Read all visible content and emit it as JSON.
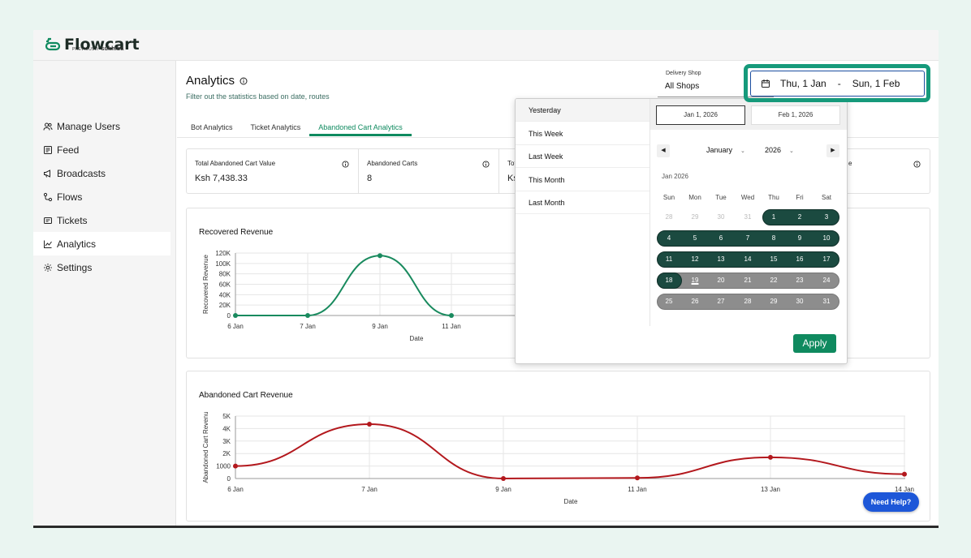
{
  "app": {
    "logo": "Flowcart",
    "logo_sub_prefix": "PREVIOUSLY",
    "logo_sub_brand": "sukhiba",
    "brand_color": "#0f8a5f"
  },
  "sidebar": {
    "items": [
      {
        "label": "Manage Users",
        "icon": "users-icon"
      },
      {
        "label": "Feed",
        "icon": "feed-icon"
      },
      {
        "label": "Broadcasts",
        "icon": "megaphone-icon"
      },
      {
        "label": "Flows",
        "icon": "flows-icon"
      },
      {
        "label": "Tickets",
        "icon": "ticket-icon"
      },
      {
        "label": "Analytics",
        "icon": "chart-icon",
        "active": true
      },
      {
        "label": "Settings",
        "icon": "gear-icon"
      }
    ]
  },
  "page": {
    "title": "Analytics",
    "subtitle": "Filter out the statistics based on date, routes"
  },
  "tabs": [
    "Bot Analytics",
    "Ticket Analytics",
    "Abandoned Cart Analytics"
  ],
  "shop_filter": {
    "label": "Delivery Shop",
    "value": "All Shops"
  },
  "date_range": {
    "start": "Thu, 1 Jan",
    "separator": "-",
    "end": "Sun, 1 Feb"
  },
  "cards": [
    {
      "label": "Total Abandoned Cart Value",
      "value": "Ksh 7,438.33"
    },
    {
      "label": "Abandoned Carts",
      "value": "8"
    },
    {
      "label": "Tot",
      "value": "Ks"
    },
    {
      "label": "e",
      "value": ""
    }
  ],
  "datepicker": {
    "presets": [
      "Yesterday",
      "This Week",
      "Last Week",
      "This Month",
      "Last Month"
    ],
    "start_input": "Jan 1, 2026",
    "end_input": "Feb 1, 2026",
    "month": "January",
    "year": "2026",
    "month_label": "Jan 2026",
    "weekdays": [
      "Sun",
      "Mon",
      "Tue",
      "Wed",
      "Thu",
      "Fri",
      "Sat"
    ],
    "weeks": [
      [
        "28",
        "29",
        "30",
        "31",
        "1",
        "2",
        "3"
      ],
      [
        "4",
        "5",
        "6",
        "7",
        "8",
        "9",
        "10"
      ],
      [
        "11",
        "12",
        "13",
        "14",
        "15",
        "16",
        "17"
      ],
      [
        "18",
        "19",
        "20",
        "21",
        "22",
        "23",
        "24"
      ],
      [
        "25",
        "26",
        "27",
        "28",
        "29",
        "30",
        "31"
      ]
    ],
    "apply_label": "Apply"
  },
  "recovered_panel": {
    "title": "Recovered Revenue"
  },
  "abandoned_panel": {
    "title": "Abandoned Cart Revenue"
  },
  "help_button": "Need Help?",
  "chart_data": [
    {
      "type": "line",
      "title": "Recovered Revenue",
      "xlabel": "Date",
      "ylabel": "Recovered Revenue",
      "x": [
        "6 Jan",
        "7 Jan",
        "9 Jan",
        "11 Jan"
      ],
      "values": [
        0,
        0,
        115000,
        0
      ],
      "yticks": [
        "0",
        "20K",
        "40K",
        "60K",
        "80K",
        "100K",
        "120K"
      ],
      "ylim": [
        0,
        120000
      ],
      "color": "#198a5e"
    },
    {
      "type": "line",
      "title": "Abandoned Cart Revenue",
      "xlabel": "Date",
      "ylabel": "Abandoned Cart Revenu",
      "x": [
        "6 Jan",
        "7 Jan",
        "9 Jan",
        "11 Jan",
        "13 Jan",
        "14 Jan"
      ],
      "values": [
        1000,
        4350,
        0,
        50,
        1700,
        350
      ],
      "yticks": [
        "0",
        "1000",
        "2K",
        "3K",
        "4K",
        "5K"
      ],
      "ylim": [
        0,
        5000
      ],
      "color": "#b3181d"
    }
  ]
}
